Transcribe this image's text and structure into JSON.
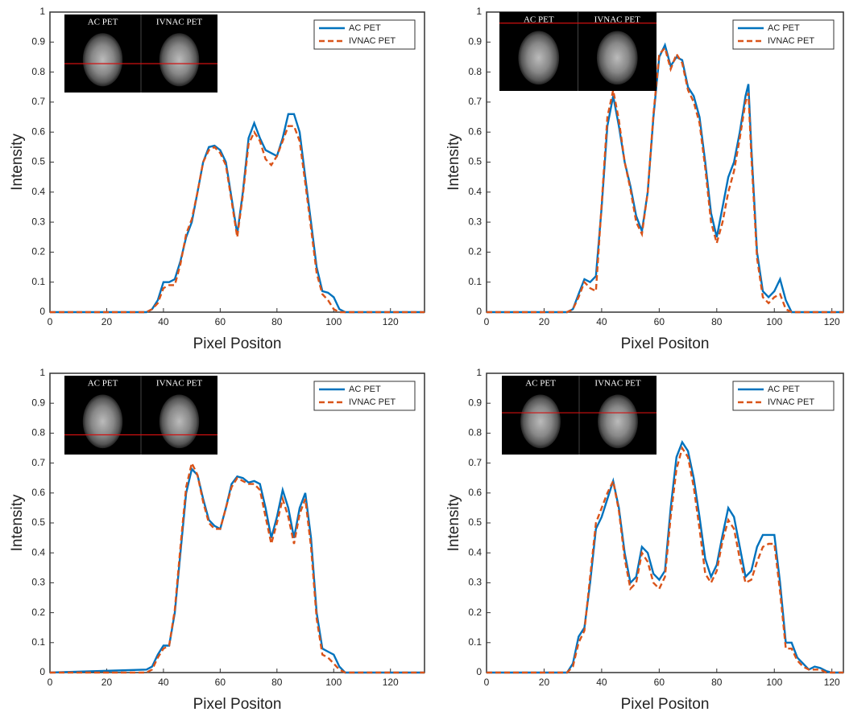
{
  "chart_data": [
    {
      "type": "line",
      "xlabel": "Pixel Positon",
      "ylabel": "Intensity",
      "inset_labels": [
        "AC PET",
        "IVNAC PET"
      ],
      "legend": "upper right",
      "xlim": [
        0,
        132
      ],
      "xticks": [
        0,
        20,
        40,
        60,
        80,
        100,
        120
      ],
      "ylim": [
        0,
        1
      ],
      "yticks": [
        0,
        0.1,
        0.2,
        0.3,
        0.4,
        0.5,
        0.6,
        0.7,
        0.8,
        0.9,
        1
      ],
      "x": [
        0,
        34,
        36,
        38,
        40,
        42,
        44,
        46,
        48,
        50,
        52,
        54,
        56,
        58,
        60,
        62,
        64,
        66,
        68,
        70,
        72,
        74,
        76,
        78,
        80,
        82,
        84,
        86,
        88,
        90,
        92,
        94,
        96,
        98,
        100,
        102,
        104,
        132
      ],
      "series": [
        {
          "name": "AC PET",
          "color": "#0072BD",
          "linestyle": "solid",
          "values": [
            0,
            0,
            0.01,
            0.04,
            0.1,
            0.1,
            0.11,
            0.17,
            0.25,
            0.3,
            0.4,
            0.5,
            0.55,
            0.555,
            0.54,
            0.5,
            0.38,
            0.26,
            0.4,
            0.58,
            0.63,
            0.58,
            0.54,
            0.53,
            0.52,
            0.58,
            0.66,
            0.66,
            0.6,
            0.45,
            0.3,
            0.15,
            0.07,
            0.065,
            0.05,
            0.01,
            0,
            0
          ]
        },
        {
          "name": "IVNAC PET",
          "color": "#D95319",
          "linestyle": "dashed",
          "values": [
            0,
            0,
            0.01,
            0.03,
            0.08,
            0.09,
            0.09,
            0.16,
            0.26,
            0.31,
            0.4,
            0.5,
            0.54,
            0.55,
            0.53,
            0.49,
            0.37,
            0.25,
            0.39,
            0.56,
            0.6,
            0.57,
            0.51,
            0.49,
            0.52,
            0.57,
            0.62,
            0.62,
            0.57,
            0.43,
            0.28,
            0.13,
            0.06,
            0.04,
            0.01,
            0,
            0,
            0
          ]
        }
      ]
    },
    {
      "type": "line",
      "xlabel": "Pixel Positon",
      "ylabel": "Intensity",
      "inset_labels": [
        "AC PET",
        "IVNAC PET"
      ],
      "legend": "upper right",
      "xlim": [
        0,
        124
      ],
      "xticks": [
        0,
        20,
        40,
        60,
        80,
        100,
        120
      ],
      "ylim": [
        0,
        1
      ],
      "yticks": [
        0,
        0.1,
        0.2,
        0.3,
        0.4,
        0.5,
        0.6,
        0.7,
        0.8,
        0.9,
        1
      ],
      "x": [
        0,
        28,
        30,
        32,
        34,
        36,
        38,
        40,
        42,
        44,
        46,
        48,
        50,
        52,
        54,
        56,
        58,
        60,
        62,
        64,
        66,
        68,
        70,
        72,
        74,
        76,
        78,
        80,
        82,
        84,
        86,
        88,
        90,
        91,
        92,
        94,
        96,
        98,
        100,
        102,
        104,
        106,
        124
      ],
      "series": [
        {
          "name": "AC PET",
          "color": "#0072BD",
          "linestyle": "solid",
          "values": [
            0,
            0,
            0.01,
            0.06,
            0.11,
            0.1,
            0.12,
            0.35,
            0.62,
            0.72,
            0.62,
            0.5,
            0.42,
            0.32,
            0.27,
            0.4,
            0.65,
            0.85,
            0.89,
            0.82,
            0.85,
            0.84,
            0.75,
            0.72,
            0.65,
            0.5,
            0.33,
            0.25,
            0.35,
            0.45,
            0.5,
            0.6,
            0.72,
            0.76,
            0.55,
            0.2,
            0.07,
            0.05,
            0.07,
            0.11,
            0.04,
            0,
            0
          ]
        },
        {
          "name": "IVNAC PET",
          "color": "#D95319",
          "linestyle": "dashed",
          "values": [
            0,
            0,
            0.01,
            0.05,
            0.1,
            0.08,
            0.07,
            0.36,
            0.65,
            0.74,
            0.64,
            0.5,
            0.41,
            0.3,
            0.26,
            0.4,
            0.66,
            0.86,
            0.88,
            0.81,
            0.86,
            0.83,
            0.74,
            0.7,
            0.63,
            0.48,
            0.3,
            0.23,
            0.3,
            0.4,
            0.47,
            0.58,
            0.7,
            0.73,
            0.52,
            0.18,
            0.05,
            0.03,
            0.05,
            0.06,
            0.01,
            0,
            0
          ]
        }
      ]
    },
    {
      "type": "line",
      "xlabel": "Pixel Positon",
      "ylabel": "Intensity",
      "inset_labels": [
        "AC PET",
        "IVNAC PET"
      ],
      "legend": "upper right",
      "xlim": [
        0,
        132
      ],
      "xticks": [
        0,
        20,
        40,
        60,
        80,
        100,
        120
      ],
      "ylim": [
        0,
        1
      ],
      "yticks": [
        0,
        0.1,
        0.2,
        0.3,
        0.4,
        0.5,
        0.6,
        0.7,
        0.8,
        0.9,
        1
      ],
      "x": [
        0,
        34,
        36,
        38,
        40,
        42,
        44,
        46,
        48,
        50,
        52,
        54,
        56,
        58,
        60,
        62,
        64,
        66,
        68,
        70,
        72,
        74,
        76,
        78,
        80,
        82,
        84,
        86,
        88,
        90,
        92,
        94,
        96,
        98,
        100,
        102,
        104,
        132
      ],
      "series": [
        {
          "name": "AC PET",
          "color": "#0072BD",
          "linestyle": "solid",
          "values": [
            0,
            0.01,
            0.02,
            0.06,
            0.09,
            0.09,
            0.2,
            0.4,
            0.6,
            0.68,
            0.66,
            0.58,
            0.51,
            0.49,
            0.48,
            0.55,
            0.63,
            0.655,
            0.65,
            0.635,
            0.64,
            0.63,
            0.55,
            0.45,
            0.52,
            0.61,
            0.55,
            0.45,
            0.55,
            0.6,
            0.45,
            0.2,
            0.08,
            0.07,
            0.06,
            0.02,
            0,
            0
          ]
        },
        {
          "name": "IVNAC PET",
          "color": "#D95319",
          "linestyle": "dashed",
          "values": [
            0,
            0,
            0.01,
            0.05,
            0.08,
            0.09,
            0.21,
            0.42,
            0.62,
            0.7,
            0.66,
            0.57,
            0.5,
            0.48,
            0.48,
            0.55,
            0.62,
            0.65,
            0.64,
            0.63,
            0.63,
            0.61,
            0.52,
            0.43,
            0.5,
            0.58,
            0.52,
            0.43,
            0.53,
            0.58,
            0.42,
            0.18,
            0.06,
            0.05,
            0.03,
            0.01,
            0,
            0
          ]
        }
      ]
    },
    {
      "type": "line",
      "xlabel": "Pixel Positon",
      "ylabel": "Intensity",
      "inset_labels": [
        "AC PET",
        "IVNAC PET"
      ],
      "legend": "upper right",
      "xlim": [
        0,
        124
      ],
      "xticks": [
        0,
        20,
        40,
        60,
        80,
        100,
        120
      ],
      "ylim": [
        0,
        1
      ],
      "yticks": [
        0,
        0.1,
        0.2,
        0.3,
        0.4,
        0.5,
        0.6,
        0.7,
        0.8,
        0.9,
        1
      ],
      "x": [
        0,
        28,
        30,
        32,
        34,
        36,
        38,
        40,
        42,
        44,
        46,
        48,
        50,
        52,
        54,
        56,
        58,
        60,
        62,
        64,
        66,
        68,
        70,
        72,
        74,
        76,
        78,
        80,
        82,
        84,
        86,
        88,
        90,
        92,
        94,
        96,
        98,
        100,
        102,
        104,
        106,
        108,
        110,
        112,
        114,
        116,
        118,
        120,
        124
      ],
      "series": [
        {
          "name": "AC PET",
          "color": "#0072BD",
          "linestyle": "solid",
          "values": [
            0,
            0,
            0.03,
            0.12,
            0.15,
            0.3,
            0.48,
            0.52,
            0.58,
            0.64,
            0.55,
            0.4,
            0.3,
            0.32,
            0.42,
            0.4,
            0.33,
            0.31,
            0.34,
            0.55,
            0.72,
            0.77,
            0.74,
            0.65,
            0.52,
            0.38,
            0.32,
            0.36,
            0.46,
            0.55,
            0.52,
            0.42,
            0.32,
            0.34,
            0.42,
            0.46,
            0.46,
            0.46,
            0.3,
            0.1,
            0.1,
            0.05,
            0.03,
            0.01,
            0.02,
            0.015,
            0.005,
            0,
            0
          ]
        },
        {
          "name": "IVNAC PET",
          "color": "#D95319",
          "linestyle": "dashed",
          "values": [
            0,
            0,
            0.02,
            0.1,
            0.14,
            0.32,
            0.5,
            0.55,
            0.6,
            0.64,
            0.54,
            0.38,
            0.28,
            0.3,
            0.4,
            0.37,
            0.3,
            0.28,
            0.32,
            0.52,
            0.68,
            0.75,
            0.72,
            0.62,
            0.48,
            0.33,
            0.3,
            0.34,
            0.44,
            0.51,
            0.48,
            0.38,
            0.3,
            0.31,
            0.37,
            0.42,
            0.43,
            0.43,
            0.27,
            0.08,
            0.08,
            0.04,
            0.02,
            0.01,
            0.01,
            0.01,
            0,
            0,
            0
          ]
        }
      ]
    }
  ]
}
